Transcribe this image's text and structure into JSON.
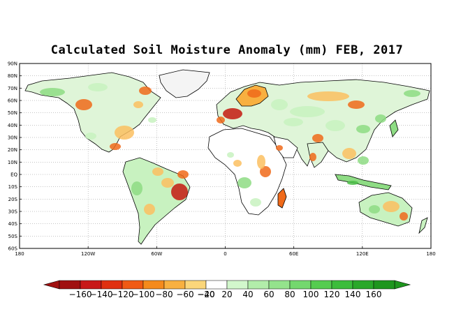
{
  "title": "Calculated Soil Moisture Anomaly (mm) FEB, 2017",
  "lat_ticks": [
    "90N",
    "80N",
    "70N",
    "60N",
    "50N",
    "40N",
    "30N",
    "20N",
    "10N",
    "EQ",
    "10S",
    "20S",
    "30S",
    "40S",
    "50S",
    "60S"
  ],
  "lon_ticks": [
    "180",
    "120W",
    "60W",
    "0",
    "60E",
    "120E",
    "180"
  ],
  "colorbar": {
    "labels": [
      "−160",
      "−140",
      "−120",
      "−100",
      "−80",
      "−60",
      "−40",
      "−20",
      "20",
      "40",
      "60",
      "80",
      "100",
      "120",
      "140",
      "160"
    ],
    "colors": [
      "#a01010",
      "#c81818",
      "#e03010",
      "#f05a14",
      "#f58a1c",
      "#f8b040",
      "#fbd67a",
      "#ffffff",
      "#d2f7cc",
      "#b2edaa",
      "#94e38c",
      "#74d86e",
      "#55cc50",
      "#3cbd3c",
      "#2aa82a",
      "#1e961e"
    ]
  },
  "map_colors": {
    "dry_strong": "#c41a10",
    "dry_mid": "#f06a1a",
    "dry_light": "#fbc060",
    "wet_light": "#c8f2c0",
    "wet_mid": "#8edc84",
    "wet_strong": "#4cc048"
  }
}
